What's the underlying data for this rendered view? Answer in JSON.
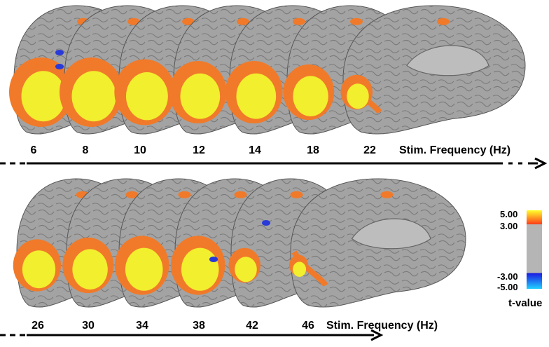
{
  "panels": [
    {
      "id": "top",
      "frequencies": [
        "6",
        "8",
        "10",
        "12",
        "14",
        "18",
        "22"
      ],
      "axis_label": "Stim. Frequency (Hz)"
    },
    {
      "id": "bottom",
      "frequencies": [
        "26",
        "30",
        "34",
        "38",
        "42",
        "46"
      ],
      "axis_label": "Stim. Frequency (Hz)"
    }
  ],
  "colorbar": {
    "ticks": [
      "5.00",
      "3.00",
      "-3.00",
      "-5.00"
    ],
    "title": "t-value",
    "colors": {
      "pos_high": "#ffff2a",
      "pos_low": "#ff3a1a",
      "neutral": "#b5b5b5",
      "neg_low": "#1a1ae0",
      "neg_high": "#20d0ff"
    }
  },
  "colors": {
    "brain": "#a3a3a3",
    "sulcus": "#7a7a7a",
    "activation_strong": "#f2ef2e",
    "activation_weak": "#f07a2a",
    "negative": "#2a3ad8"
  }
}
